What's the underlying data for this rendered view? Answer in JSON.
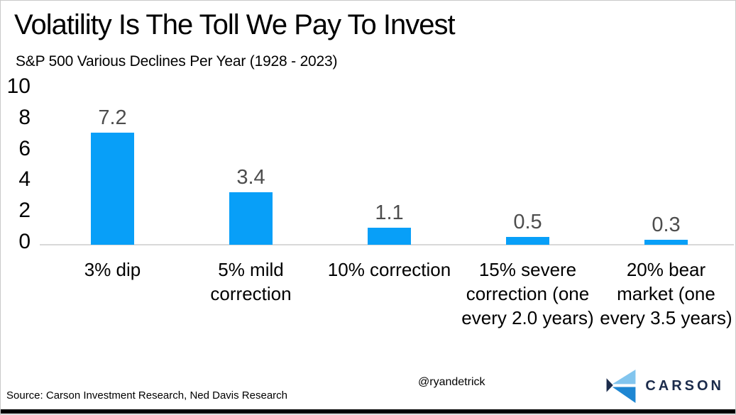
{
  "chart_data": {
    "type": "bar",
    "title": "Volatility Is The Toll We Pay To Invest",
    "subtitle": "S&P 500 Various Declines Per Year (1928 - 2023)",
    "categories": [
      "3% dip",
      "5% mild correction",
      "10% correction",
      "15% severe correction (one every 2.0 years)",
      "20% bear market (one every 3.5 years)"
    ],
    "values": [
      7.2,
      3.4,
      1.1,
      0.5,
      0.3
    ],
    "data_labels": [
      "7.2",
      "3.4",
      "1.1",
      "0.5",
      "0.3"
    ],
    "xlabel": "",
    "ylabel": "",
    "ylim": [
      0,
      10
    ],
    "yticks": [
      0,
      2,
      4,
      6,
      8,
      10
    ],
    "grid": false,
    "legend": "none",
    "bar_color": "#089ff8",
    "data_label_color": "#4d4d4d",
    "axis_line_color": "#d9d9d9"
  },
  "footer": {
    "source": "Source: Carson Investment Research, Ned Davis Research",
    "handle": "@ryandetrick",
    "logo_text": "CARSON",
    "logo_colors": {
      "light": "#82c5ee",
      "mid": "#1e86d2",
      "navy": "#1b2b4b"
    }
  }
}
